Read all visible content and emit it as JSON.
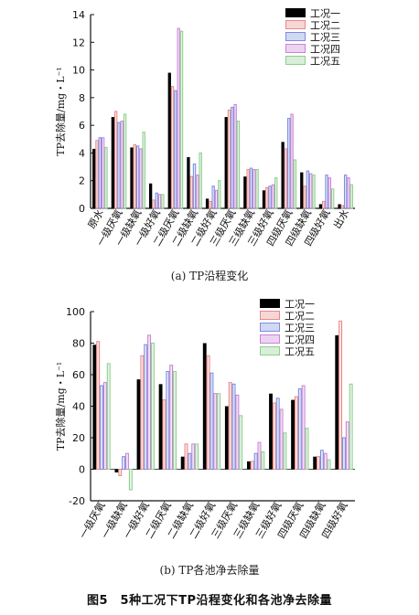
{
  "colors": {
    "s1": "#000000",
    "s2": "#e88a8a",
    "s3": "#7b8ee0",
    "s4": "#c884d8",
    "s5": "#8fcf8f"
  },
  "chart_data": [
    {
      "id": "a",
      "type": "bar",
      "caption": "(a) TP沿程变化",
      "ylabel": "TP去除量/mg・L⁻¹",
      "ylim": [
        0,
        14
      ],
      "yticks": [
        0,
        2,
        4,
        6,
        8,
        10,
        12,
        14
      ],
      "legend_position": "top-right",
      "categories": [
        "原水",
        "一级厌氧",
        "一级缺氧",
        "一级好氧",
        "二级厌氧",
        "二级缺氧",
        "二级好氧",
        "三级厌氧",
        "三级缺氧",
        "三级好氧",
        "四级厌氧",
        "四级缺氧",
        "四级好氧",
        "出水"
      ],
      "series": [
        {
          "name": "工况一",
          "values": [
            4.3,
            6.6,
            4.4,
            1.8,
            9.8,
            3.7,
            0.7,
            6.6,
            2.3,
            1.3,
            4.8,
            2.6,
            0.3,
            0.3
          ]
        },
        {
          "name": "工况二",
          "values": [
            4.9,
            7.0,
            4.6,
            0.6,
            8.8,
            2.3,
            0.5,
            7.1,
            2.8,
            1.5,
            4.3,
            1.6,
            0.5,
            0.2
          ]
        },
        {
          "name": "工况三",
          "values": [
            5.1,
            6.2,
            4.5,
            1.1,
            8.5,
            3.2,
            1.6,
            7.3,
            2.9,
            1.6,
            6.5,
            2.7,
            2.4,
            2.4
          ]
        },
        {
          "name": "工况四",
          "values": [
            5.1,
            6.3,
            4.3,
            1.0,
            13.0,
            2.4,
            1.3,
            7.5,
            2.8,
            1.7,
            6.8,
            2.5,
            2.2,
            2.2
          ]
        },
        {
          "name": "工况五",
          "values": [
            4.4,
            6.8,
            5.5,
            1.0,
            12.8,
            4.0,
            2.0,
            6.3,
            2.8,
            2.2,
            3.5,
            2.4,
            1.4,
            1.7
          ]
        }
      ]
    },
    {
      "id": "b",
      "type": "bar",
      "caption": "(b) TP各池净去除量",
      "ylabel": "TP去除量/mg・L⁻¹",
      "ylim": [
        -20,
        100
      ],
      "yticks": [
        -20,
        0,
        20,
        40,
        60,
        80,
        100
      ],
      "legend_position": "top-right",
      "categories": [
        "一级厌氧",
        "一级缺氧",
        "一级好氧",
        "二级厌氧",
        "二级缺氧",
        "二级好氧",
        "三级厌氧",
        "三级缺氧",
        "三级好氧",
        "四级厌氧",
        "四级缺氧",
        "四级好氧"
      ],
      "series": [
        {
          "name": "工况一",
          "values": [
            79,
            -2,
            57,
            54,
            8,
            80,
            40,
            5,
            48,
            44,
            8,
            85
          ]
        },
        {
          "name": "工况二",
          "values": [
            81,
            -4,
            72,
            44,
            16,
            72,
            55,
            5,
            42,
            46,
            8,
            94
          ]
        },
        {
          "name": "工况三",
          "values": [
            53,
            8,
            79,
            62,
            10,
            61,
            54,
            10,
            45,
            51,
            12,
            20
          ]
        },
        {
          "name": "工况四",
          "values": [
            55,
            10,
            85,
            66,
            16,
            48,
            47,
            17,
            38,
            53,
            10,
            30
          ]
        },
        {
          "name": "工况五",
          "values": [
            67,
            -13,
            80,
            62,
            16,
            48,
            34,
            11,
            23,
            26,
            6,
            54
          ]
        }
      ]
    }
  ],
  "figure_caption": "图5　5种工况下TP沿程变化和各池净去除量"
}
